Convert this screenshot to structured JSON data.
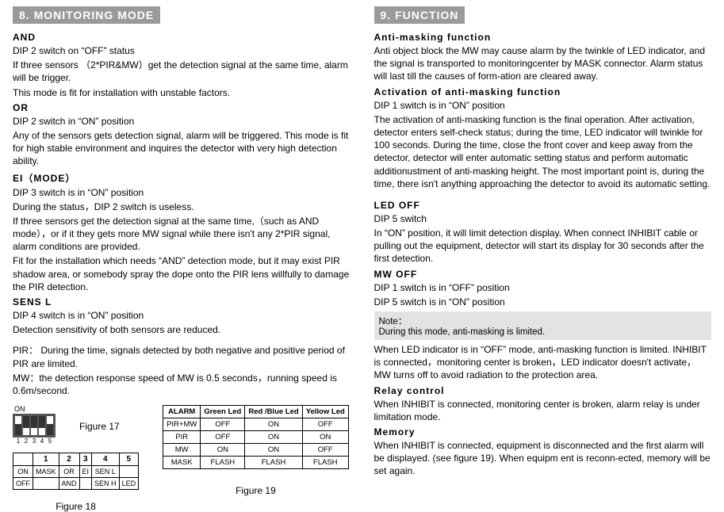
{
  "left": {
    "header": "8. MONITORING MODE",
    "and_h": "AND",
    "and_p1": "DIP 2 switch on “OFF” status",
    "and_p2": "If three sensors （2*PIR&MW）get the detection signal at the same time, alarm will be trigger.",
    "and_p3": "This mode is fit for installation with unstable factors.",
    "or_h": "OR",
    "or_p1": "DIP 2 switch in “ON” position",
    "or_p2": "Any of the sensors gets detection signal, alarm will be triggered. This mode is fit for high stable environment and inquires the detector with very high detection ability.",
    "ei_h": "EI（MODE）",
    "ei_p1": "DIP 3 switch is in “ON” position",
    "ei_p2": "During the status，DIP 2 switch is useless.",
    "ei_p3": "If three sensors get the detection signal at the same time,（such as AND mode），or if it they gets more MW signal while there isn't any 2*PIR signal, alarm conditions are provided.",
    "ei_p4": "Fit for the installation which needs “AND” detection mode, but it may exist PIR shadow area, or somebody spray the dope onto the PIR lens willfully to damage the PIR detection.",
    "sens_h": "SENS L",
    "sens_p1": "DIP 4 switch is in “ON” position",
    "sens_p2": "Detection sensitivity of both sensors are reduced.",
    "pir_note": "PIR： During the time, signals detected by both negative and positive period of PIR are limited.",
    "mw_note": "MW：the detection response speed of MW is 0.5 seconds，running speed is 0.6m/second.",
    "fig17": "Figure 17",
    "fig18": "Figure 18",
    "fig19": "Figure 19",
    "dip": {
      "on": "ON",
      "nums": [
        "1",
        "2",
        "3",
        "4",
        "5"
      ],
      "pos": [
        "up",
        "down",
        "down",
        "down",
        "up"
      ]
    },
    "tbl18": {
      "h": [
        "",
        "1",
        "2",
        "3",
        "4",
        "5"
      ],
      "r1": [
        "ON",
        "MASK",
        "OR",
        "EI",
        "SEN L",
        ""
      ],
      "r2": [
        "OFF",
        "",
        "AND",
        "",
        "SEN H",
        "LED"
      ]
    },
    "tbl19": {
      "h": [
        "ALARM",
        "Green Led",
        "Red /Blue Led",
        "Yellow Led"
      ],
      "r1": [
        "PIR+MW",
        "OFF",
        "ON",
        "OFF"
      ],
      "r2": [
        "PIR",
        "OFF",
        "ON",
        "ON"
      ],
      "r3": [
        "MW",
        "ON",
        "ON",
        "OFF"
      ],
      "r4": [
        "MASK",
        "FLASH",
        "FLASH",
        "FLASH"
      ]
    }
  },
  "right": {
    "header": "9. FUNCTION",
    "am_h": "Anti-masking function",
    "am_p1": "Anti object block the MW may cause alarm by the twinkle of LED indicator, and the signal is transported to monitoringcenter by MASK connector. Alarm status will last till the causes of form-ation are cleared away.",
    "act_h": "Activation of anti-masking function",
    "act_p1": "DIP 1 switch is in “ON” position",
    "act_p2": "The activation of anti-masking function is the final operation. After activation, detector enters self-check status; during the time, LED indicator will twinkle for 100 seconds. During the time, close the front cover and keep away from the detector, detector will enter automatic setting status and perform automatic additionustment of anti-masking height. The most important point is, during the time, there isn't anything approaching the detector to avoid its automatic setting.",
    "led_h": "LED OFF",
    "led_p1": "DIP 5 switch",
    "led_p2": "In “ON” position, it will limit detection display. When connect INHIBIT cable or pulling out the equipment, detector will start its display for 30 seconds after the first detection.",
    "mwo_h": "MW OFF",
    "mwo_p1": "DIP 1 switch is in “OFF” position",
    "mwo_p2": "DIP 5 switch is in “ON” position",
    "note_h": "Note：",
    "note_p": "During this mode, anti-masking is limited.",
    "after_p": "When LED indicator is in “OFF” mode, anti-masking function is limited. INHIBIT is connected，monitoring center is broken，LED indicator doesn't activate，MW turns off to avoid radiation to the protection area.",
    "relay_h": "Relay control",
    "relay_p": "When INHIBIT is connected, monitoring center is broken, alarm relay is under limitation mode.",
    "mem_h": "Memory",
    "mem_p": "When INHIBIT is connected, equipment is disconnected and the first alarm will be displayed. (see figure 19). When equipm ent is reconn-ected, memory will be set again."
  }
}
